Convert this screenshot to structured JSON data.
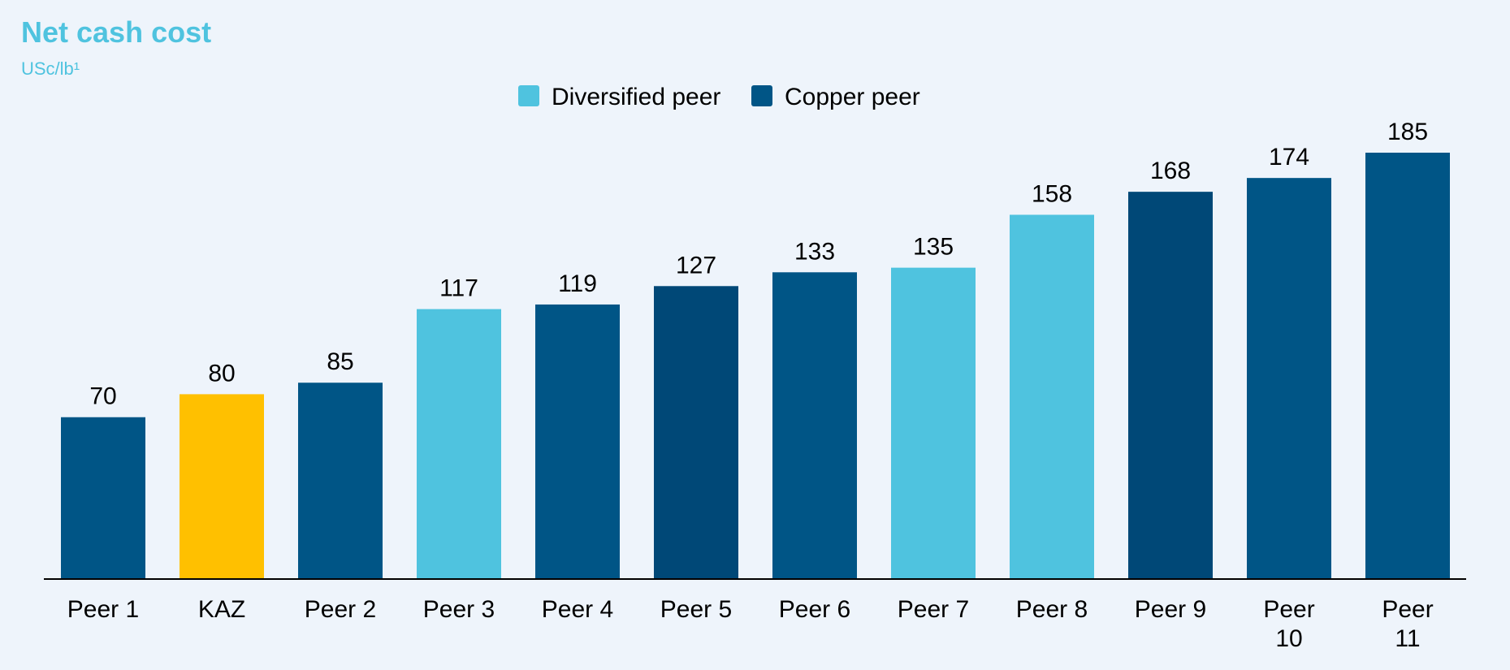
{
  "chart_data": {
    "type": "bar",
    "title": "Net cash cost",
    "subtitle": "USc/lb¹",
    "categories": [
      "Peer 1",
      "KAZ",
      "Peer 2",
      "Peer 3",
      "Peer 4",
      "Peer 5",
      "Peer 6",
      "Peer 7",
      "Peer 8",
      "Peer 9",
      "Peer 10",
      "Peer 11"
    ],
    "values": [
      70,
      80,
      85,
      117,
      119,
      127,
      133,
      135,
      158,
      168,
      174,
      185
    ],
    "colors": [
      "#005586",
      "#ffc000",
      "#005586",
      "#4fc3df",
      "#005586",
      "#004877",
      "#005586",
      "#4fc3df",
      "#4fc3df",
      "#004877",
      "#005586",
      "#005586"
    ],
    "legend": [
      {
        "name": "Diversified peer",
        "color": "#4fc3df"
      },
      {
        "name": "Copper peer",
        "color": "#005586"
      }
    ]
  }
}
